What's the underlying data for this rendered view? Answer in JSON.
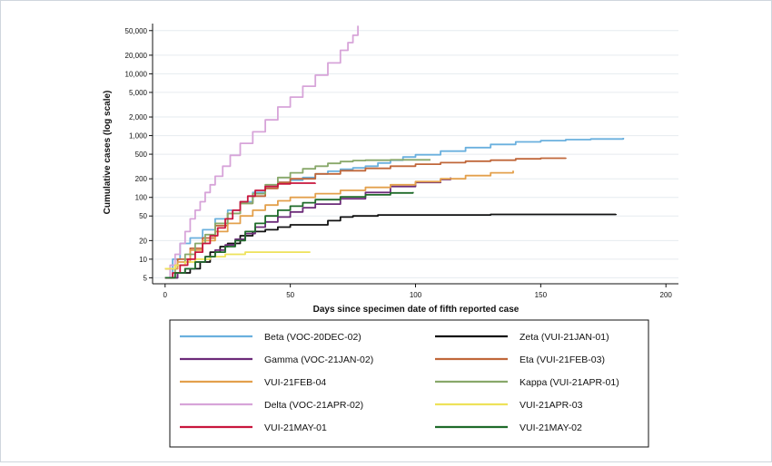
{
  "chart_data": {
    "type": "line",
    "title": "",
    "xlabel": "Days since specimen date of fifth reported case",
    "ylabel": "Cumulative cases (log scale)",
    "xlim": [
      -5,
      205
    ],
    "ylim": [
      4,
      65000
    ],
    "y_scale": "log",
    "grid": "horizontal",
    "legend_position": "bottom",
    "x_ticks": [
      0,
      50,
      100,
      150,
      200
    ],
    "x_tick_labels": [
      "0",
      "50",
      "100",
      "150",
      "200"
    ],
    "y_ticks": [
      5,
      10,
      20,
      50,
      100,
      200,
      500,
      1000,
      2000,
      5000,
      10000,
      20000,
      50000
    ],
    "y_tick_labels": [
      "5",
      "10",
      "20",
      "50",
      "100",
      "200",
      "500",
      "1,000",
      "2,000",
      "5,000",
      "10,000",
      "20,000",
      "50,000"
    ],
    "series": [
      {
        "name": "Beta (VOC-20DEC-02)",
        "color": "#6ab0de",
        "points": [
          [
            0,
            5
          ],
          [
            3,
            10
          ],
          [
            6,
            18
          ],
          [
            10,
            22
          ],
          [
            15,
            30
          ],
          [
            20,
            45
          ],
          [
            25,
            62
          ],
          [
            30,
            85
          ],
          [
            35,
            120
          ],
          [
            40,
            150
          ],
          [
            45,
            175
          ],
          [
            50,
            190
          ],
          [
            55,
            210
          ],
          [
            60,
            240
          ],
          [
            65,
            265
          ],
          [
            70,
            285
          ],
          [
            75,
            300
          ],
          [
            80,
            320
          ],
          [
            85,
            360
          ],
          [
            90,
            400
          ],
          [
            95,
            450
          ],
          [
            100,
            490
          ],
          [
            110,
            560
          ],
          [
            120,
            640
          ],
          [
            130,
            720
          ],
          [
            140,
            790
          ],
          [
            150,
            830
          ],
          [
            160,
            860
          ],
          [
            170,
            880
          ],
          [
            183,
            920
          ]
        ]
      },
      {
        "name": "Zeta (VUI-21JAN-01)",
        "color": "#111111",
        "points": [
          [
            0,
            5
          ],
          [
            5,
            6
          ],
          [
            10,
            7
          ],
          [
            14,
            9
          ],
          [
            18,
            13
          ],
          [
            22,
            16
          ],
          [
            25,
            18
          ],
          [
            30,
            24
          ],
          [
            35,
            28
          ],
          [
            40,
            30
          ],
          [
            45,
            33
          ],
          [
            50,
            36
          ],
          [
            60,
            36
          ],
          [
            65,
            42
          ],
          [
            70,
            48
          ],
          [
            75,
            50
          ],
          [
            85,
            52
          ],
          [
            100,
            52
          ],
          [
            130,
            53
          ],
          [
            160,
            53
          ],
          [
            180,
            54
          ]
        ]
      },
      {
        "name": "Gamma (VOC-21JAN-02)",
        "color": "#6c2b79",
        "points": [
          [
            0,
            5
          ],
          [
            3,
            5
          ],
          [
            5,
            6
          ],
          [
            8,
            7
          ],
          [
            12,
            9
          ],
          [
            16,
            11
          ],
          [
            20,
            14
          ],
          [
            24,
            17
          ],
          [
            28,
            21
          ],
          [
            32,
            26
          ],
          [
            36,
            33
          ],
          [
            40,
            40
          ],
          [
            45,
            48
          ],
          [
            50,
            58
          ],
          [
            55,
            68
          ],
          [
            60,
            78
          ],
          [
            70,
            95
          ],
          [
            80,
            120
          ],
          [
            90,
            150
          ],
          [
            100,
            175
          ],
          [
            110,
            195
          ],
          [
            114,
            210
          ]
        ]
      },
      {
        "name": "Eta (VUI-21FEB-03)",
        "color": "#c0673a",
        "points": [
          [
            0,
            7
          ],
          [
            5,
            10
          ],
          [
            10,
            15
          ],
          [
            15,
            22
          ],
          [
            20,
            35
          ],
          [
            25,
            55
          ],
          [
            30,
            80
          ],
          [
            35,
            105
          ],
          [
            40,
            140
          ],
          [
            45,
            175
          ],
          [
            50,
            200
          ],
          [
            60,
            240
          ],
          [
            70,
            270
          ],
          [
            80,
            295
          ],
          [
            90,
            320
          ],
          [
            100,
            345
          ],
          [
            110,
            365
          ],
          [
            120,
            385
          ],
          [
            130,
            400
          ],
          [
            140,
            420
          ],
          [
            150,
            430
          ],
          [
            160,
            440
          ]
        ]
      },
      {
        "name": "VUI-21FEB-04",
        "color": "#e3a04c",
        "points": [
          [
            0,
            7
          ],
          [
            5,
            9
          ],
          [
            10,
            14
          ],
          [
            15,
            20
          ],
          [
            20,
            28
          ],
          [
            25,
            38
          ],
          [
            30,
            50
          ],
          [
            35,
            62
          ],
          [
            40,
            75
          ],
          [
            45,
            88
          ],
          [
            50,
            100
          ],
          [
            60,
            115
          ],
          [
            70,
            130
          ],
          [
            80,
            145
          ],
          [
            90,
            160
          ],
          [
            100,
            180
          ],
          [
            110,
            200
          ],
          [
            120,
            225
          ],
          [
            130,
            250
          ],
          [
            139,
            270
          ]
        ]
      },
      {
        "name": "Kappa (VUI-21APR-01)",
        "color": "#88a86a",
        "points": [
          [
            0,
            5
          ],
          [
            4,
            8
          ],
          [
            8,
            12
          ],
          [
            12,
            18
          ],
          [
            16,
            25
          ],
          [
            20,
            38
          ],
          [
            25,
            55
          ],
          [
            30,
            80
          ],
          [
            35,
            115
          ],
          [
            40,
            160
          ],
          [
            45,
            210
          ],
          [
            50,
            250
          ],
          [
            55,
            290
          ],
          [
            60,
            320
          ],
          [
            65,
            355
          ],
          [
            70,
            380
          ],
          [
            75,
            395
          ],
          [
            80,
            400
          ],
          [
            90,
            405
          ],
          [
            100,
            405
          ],
          [
            106,
            405
          ]
        ]
      },
      {
        "name": "Delta (VOC-21APR-02)",
        "color": "#d7a4d9",
        "points": [
          [
            0,
            5
          ],
          [
            2,
            8
          ],
          [
            4,
            12
          ],
          [
            6,
            18
          ],
          [
            8,
            28
          ],
          [
            10,
            45
          ],
          [
            12,
            62
          ],
          [
            14,
            85
          ],
          [
            16,
            120
          ],
          [
            18,
            160
          ],
          [
            20,
            220
          ],
          [
            23,
            320
          ],
          [
            26,
            480
          ],
          [
            30,
            750
          ],
          [
            35,
            1150
          ],
          [
            40,
            1800
          ],
          [
            45,
            2900
          ],
          [
            50,
            4200
          ],
          [
            55,
            6300
          ],
          [
            60,
            9500
          ],
          [
            65,
            15000
          ],
          [
            70,
            24000
          ],
          [
            73,
            32000
          ],
          [
            75,
            42000
          ],
          [
            77,
            60000
          ]
        ]
      },
      {
        "name": "VUI-21APR-03",
        "color": "#eee25a",
        "points": [
          [
            0,
            7
          ],
          [
            4,
            8
          ],
          [
            8,
            9
          ],
          [
            12,
            10
          ],
          [
            18,
            11
          ],
          [
            24,
            12
          ],
          [
            28,
            12
          ],
          [
            32,
            13
          ],
          [
            40,
            13
          ],
          [
            50,
            13
          ],
          [
            58,
            13
          ]
        ]
      },
      {
        "name": "VUI-21MAY-01",
        "color": "#c8163d",
        "points": [
          [
            0,
            5
          ],
          [
            3,
            6
          ],
          [
            6,
            8
          ],
          [
            9,
            10
          ],
          [
            12,
            13
          ],
          [
            15,
            18
          ],
          [
            18,
            24
          ],
          [
            21,
            32
          ],
          [
            24,
            45
          ],
          [
            27,
            62
          ],
          [
            30,
            85
          ],
          [
            33,
            105
          ],
          [
            36,
            130
          ],
          [
            40,
            150
          ],
          [
            45,
            165
          ],
          [
            50,
            170
          ],
          [
            55,
            170
          ],
          [
            60,
            172
          ]
        ]
      },
      {
        "name": "VUI-21MAY-02",
        "color": "#1f6b2a",
        "points": [
          [
            0,
            5
          ],
          [
            4,
            6
          ],
          [
            8,
            7
          ],
          [
            12,
            9
          ],
          [
            16,
            11
          ],
          [
            20,
            13
          ],
          [
            24,
            16
          ],
          [
            28,
            20
          ],
          [
            32,
            28
          ],
          [
            36,
            38
          ],
          [
            40,
            50
          ],
          [
            45,
            62
          ],
          [
            50,
            72
          ],
          [
            55,
            82
          ],
          [
            60,
            92
          ],
          [
            70,
            102
          ],
          [
            80,
            110
          ],
          [
            90,
            118
          ],
          [
            99,
            122
          ]
        ]
      }
    ]
  }
}
